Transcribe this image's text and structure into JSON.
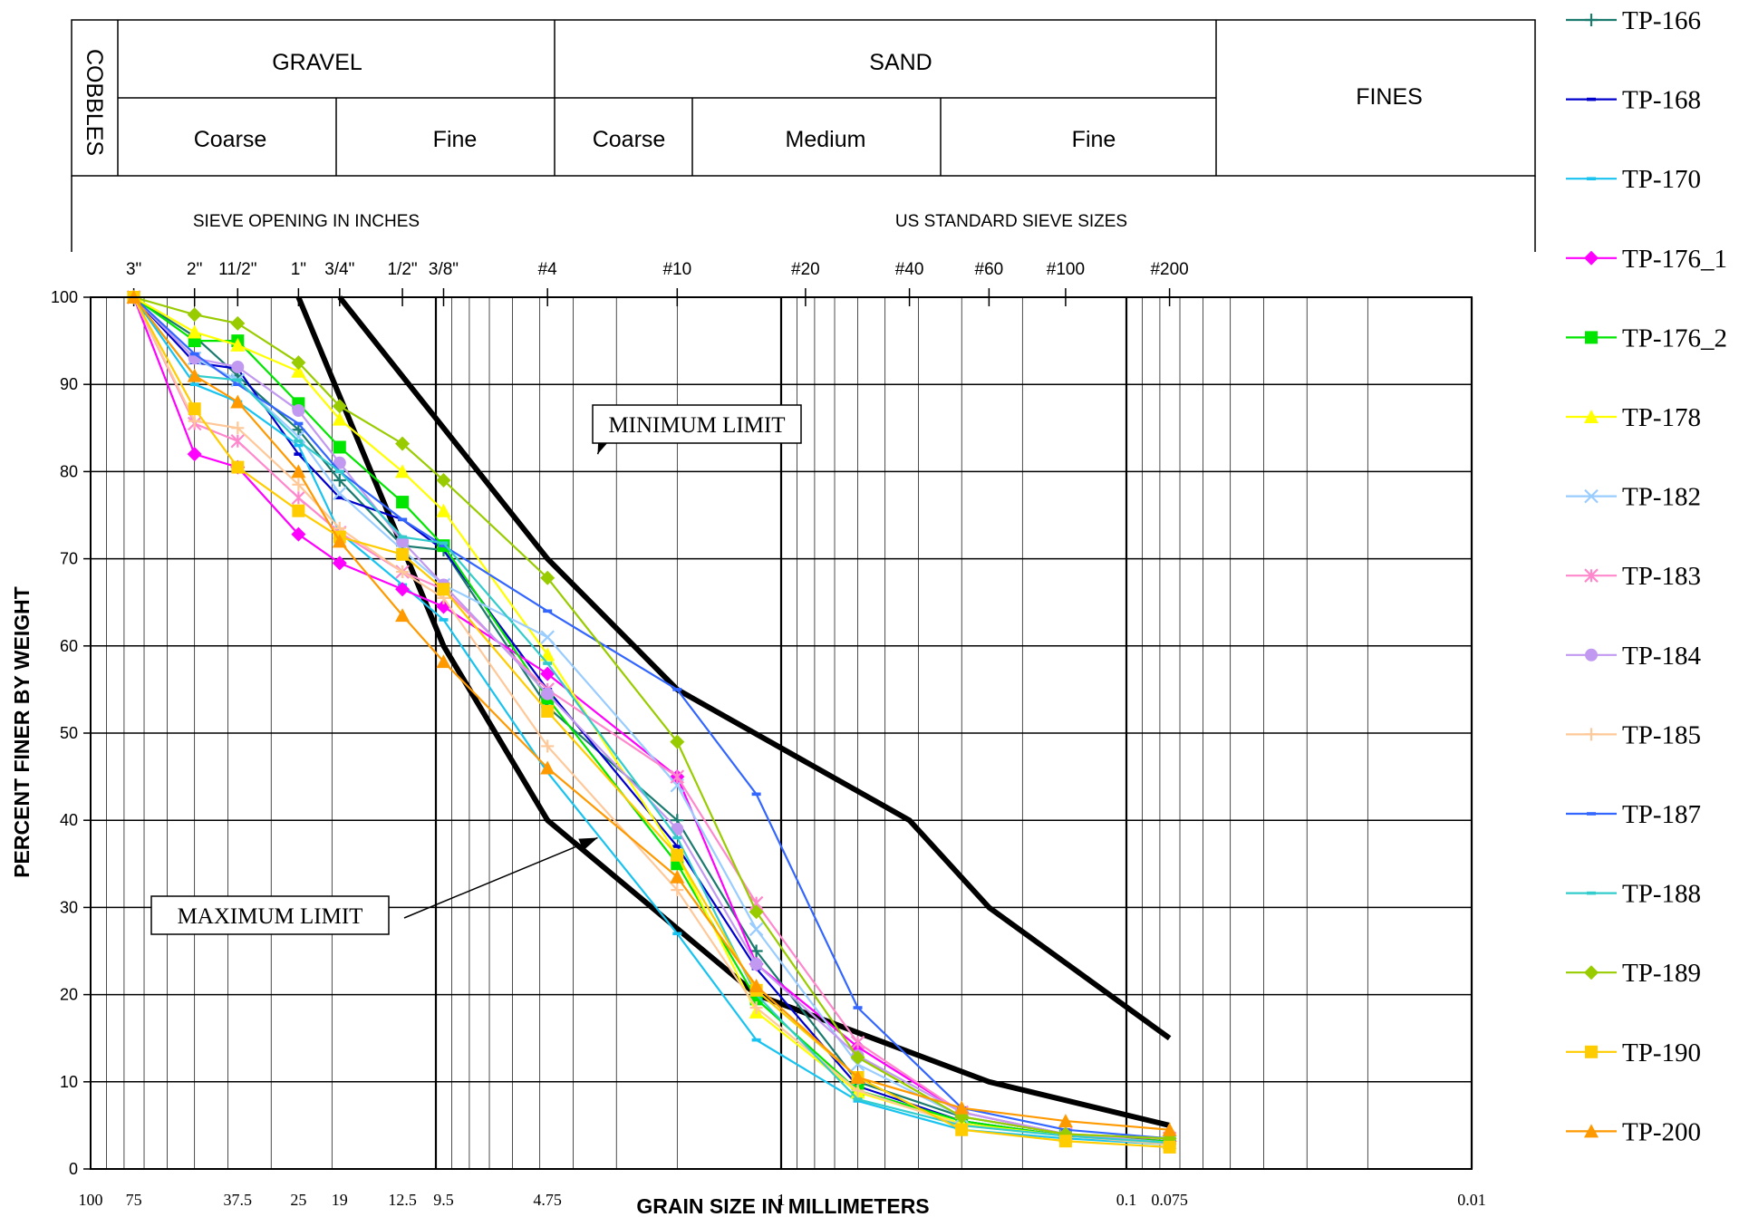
{
  "header": {
    "cobbles": "COBBLES",
    "gravel": "GRAVEL",
    "sand": "SAND",
    "fines": "FINES",
    "gravel_coarse": "Coarse",
    "gravel_fine": "Fine",
    "sand_coarse": "Coarse",
    "sand_medium": "Medium",
    "sand_fine": "Fine",
    "sieve_opening": "SIEVE OPENING IN INCHES",
    "us_sieve": "US STANDARD SIEVE SIZES"
  },
  "top_ticks": [
    {
      "label": "3\"",
      "mm": 75
    },
    {
      "label": "2\"",
      "mm": 50
    },
    {
      "label": "11/2\"",
      "mm": 37.5
    },
    {
      "label": "1\"",
      "mm": 25
    },
    {
      "label": "3/4\"",
      "mm": 19
    },
    {
      "label": "1/2\"",
      "mm": 12.5
    },
    {
      "label": "3/8\"",
      "mm": 9.5
    },
    {
      "label": "#4",
      "mm": 4.75
    },
    {
      "label": "#10",
      "mm": 2.0
    },
    {
      "label": "#20",
      "mm": 0.85
    },
    {
      "label": "#40",
      "mm": 0.425
    },
    {
      "label": "#60",
      "mm": 0.25
    },
    {
      "label": "#100",
      "mm": 0.15
    },
    {
      "label": "#200",
      "mm": 0.075
    }
  ],
  "chart_data": {
    "type": "line",
    "xlabel": "GRAIN SIZE IN MILLIMETERS",
    "ylabel": "PERCENT FINER BY WEIGHT",
    "xscale": "log",
    "xlim": [
      100,
      0.01
    ],
    "ylim": [
      0,
      100
    ],
    "x_tick_labels": [
      {
        "label": "100",
        "value": 100
      },
      {
        "label": "75",
        "value": 75
      },
      {
        "label": "37.5",
        "value": 37.5
      },
      {
        "label": "25",
        "value": 25
      },
      {
        "label": "19",
        "value": 19
      },
      {
        "label": "12.5",
        "value": 12.5
      },
      {
        "label": "9.5",
        "value": 9.5
      },
      {
        "label": "4.75",
        "value": 4.75
      },
      {
        "label": "1",
        "value": 1
      },
      {
        "label": "0.1",
        "value": 0.1
      },
      {
        "label": "0.075",
        "value": 0.075
      },
      {
        "label": "0.01",
        "value": 0.01
      }
    ],
    "y_ticks": [
      0,
      10,
      20,
      30,
      40,
      50,
      60,
      70,
      80,
      90,
      100
    ],
    "x": [
      75,
      50,
      37.5,
      25,
      19,
      12.5,
      9.5,
      4.75,
      2.0,
      1.18,
      0.6,
      0.3,
      0.15,
      0.075
    ],
    "series": [
      {
        "name": "TP-166",
        "color": "#1a7a6e",
        "marker": "plus",
        "values": [
          100,
          95.5,
          91,
          84.8,
          79,
          71.5,
          71,
          53,
          40,
          25,
          10,
          6,
          4,
          3
        ]
      },
      {
        "name": "TP-168",
        "color": "#0000cc",
        "marker": "dash",
        "values": [
          100,
          92.5,
          91.8,
          82,
          77,
          74.5,
          71,
          55,
          37,
          23,
          9.5,
          5.5,
          3.8,
          3
        ]
      },
      {
        "name": "TP-170",
        "color": "#19c3f0",
        "marker": "dash",
        "values": [
          100,
          90,
          88,
          83,
          73,
          67,
          63,
          45.5,
          27,
          14.8,
          7.8,
          4.5,
          3.5,
          2.8
        ]
      },
      {
        "name": "TP-176_1",
        "color": "#ff00ff",
        "marker": "diamond",
        "values": [
          100,
          82,
          80.5,
          72.8,
          69.5,
          66.5,
          64.5,
          56.8,
          45,
          23.5,
          14,
          6.5,
          4,
          3.2
        ]
      },
      {
        "name": "TP-176_2",
        "color": "#00e600",
        "marker": "square",
        "values": [
          100,
          95,
          95,
          87.8,
          82.8,
          76.5,
          71.5,
          54,
          35,
          19.5,
          9,
          5.5,
          3.8,
          3.2
        ]
      },
      {
        "name": "TP-178",
        "color": "#ffff00",
        "marker": "triangle",
        "values": [
          100,
          96,
          94.5,
          91.5,
          86,
          80,
          75.5,
          59,
          36,
          18,
          8.8,
          5.2,
          3.8,
          3
        ]
      },
      {
        "name": "TP-182",
        "color": "#99ccff",
        "marker": "x",
        "values": [
          100,
          93,
          90.5,
          84,
          77.5,
          71,
          67,
          61,
          44,
          27.5,
          12,
          6,
          4,
          3
        ]
      },
      {
        "name": "TP-183",
        "color": "#ff88cc",
        "marker": "star",
        "values": [
          100,
          85.5,
          83.5,
          77,
          73,
          68.5,
          66.5,
          55,
          45,
          30.5,
          14.5,
          6.5,
          4,
          3.5
        ]
      },
      {
        "name": "TP-184",
        "color": "#c299f0",
        "marker": "circle",
        "values": [
          100,
          93,
          92,
          87,
          81,
          72,
          67,
          54.5,
          39,
          23.5,
          13,
          6.5,
          4,
          3
        ]
      },
      {
        "name": "TP-185",
        "color": "#ffc899",
        "marker": "plus",
        "values": [
          100,
          85.8,
          85,
          78.5,
          73.5,
          68.5,
          65.5,
          48.5,
          32,
          18.5,
          9,
          5,
          3.8,
          2.8
        ]
      },
      {
        "name": "TP-187",
        "color": "#3366ff",
        "marker": "dash",
        "values": [
          100,
          93.5,
          90,
          85.5,
          80,
          74.5,
          71.5,
          64,
          55,
          43,
          18.5,
          7,
          4.5,
          3.5
        ]
      },
      {
        "name": "TP-188",
        "color": "#33cccc",
        "marker": "dash",
        "values": [
          100,
          91,
          90.5,
          83.5,
          80,
          72.5,
          71.8,
          58,
          38,
          20,
          8,
          5,
          3.8,
          3
        ]
      },
      {
        "name": "TP-189",
        "color": "#99cc00",
        "marker": "diamond",
        "values": [
          100,
          98,
          97,
          92.5,
          87.5,
          83.2,
          79,
          67.8,
          49,
          29.5,
          12.8,
          6,
          4,
          3.5
        ]
      },
      {
        "name": "TP-190",
        "color": "#ffcc00",
        "marker": "square",
        "values": [
          100,
          87.2,
          80.5,
          75.5,
          72.5,
          70.5,
          66.5,
          52.5,
          36,
          20.5,
          10.5,
          4.5,
          3.2,
          2.5
        ]
      },
      {
        "name": "TP-200",
        "color": "#ff9900",
        "marker": "triangle",
        "values": [
          100,
          91,
          88,
          80,
          72,
          63.5,
          58.2,
          46,
          33.5,
          21,
          10.5,
          7,
          5.5,
          4.5
        ]
      }
    ],
    "limits": [
      {
        "name": "MINIMUM LIMIT",
        "x": [
          19,
          4.75,
          2.0,
          0.425,
          0.25,
          0.075
        ],
        "values": [
          100,
          70,
          55,
          40,
          30,
          15
        ]
      },
      {
        "name": "MAXIMUM LIMIT",
        "x": [
          25,
          9.5,
          4.75,
          1.18,
          0.25,
          0.075
        ],
        "values": [
          100,
          60,
          40,
          20,
          10,
          5
        ]
      }
    ],
    "annotations": [
      {
        "text": "MINIMUM LIMIT",
        "target_mm": 3.4,
        "target_pct": 82
      },
      {
        "text": "MAXIMUM LIMIT",
        "target_mm": 3.4,
        "target_pct": 38
      }
    ]
  }
}
